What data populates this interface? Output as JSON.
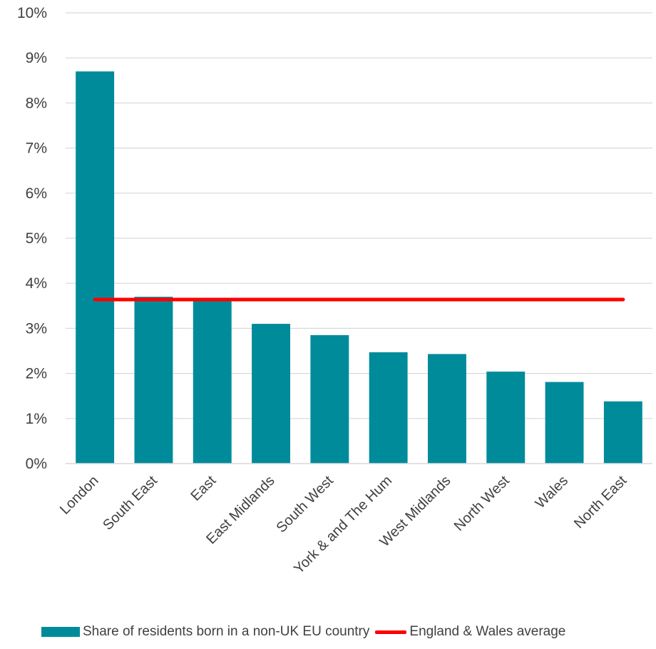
{
  "chart_data": {
    "type": "bar",
    "categories": [
      "London",
      "South East",
      "East",
      "East Midlands",
      "South West",
      "York & and The Hum",
      "West Midlands",
      "North West",
      "Wales",
      "North East"
    ],
    "series": [
      {
        "name": "Share of residents born in a non-UK EU country",
        "type": "bar",
        "color": "#008b9a",
        "values": [
          8.7,
          3.7,
          3.65,
          3.1,
          2.85,
          2.47,
          2.43,
          2.04,
          1.81,
          1.38
        ]
      },
      {
        "name": "England & Wales average",
        "type": "line",
        "color": "#ff0000",
        "value": 3.64
      }
    ],
    "ylim": [
      0,
      10
    ],
    "yticks": [
      0,
      1,
      2,
      3,
      4,
      5,
      6,
      7,
      8,
      9,
      10
    ],
    "ytick_labels": [
      "0%",
      "1%",
      "2%",
      "3%",
      "4%",
      "5%",
      "6%",
      "7%",
      "8%",
      "9%",
      "10%"
    ],
    "grid": true,
    "legend_position": "bottom",
    "title": "",
    "xlabel": "",
    "ylabel": ""
  }
}
